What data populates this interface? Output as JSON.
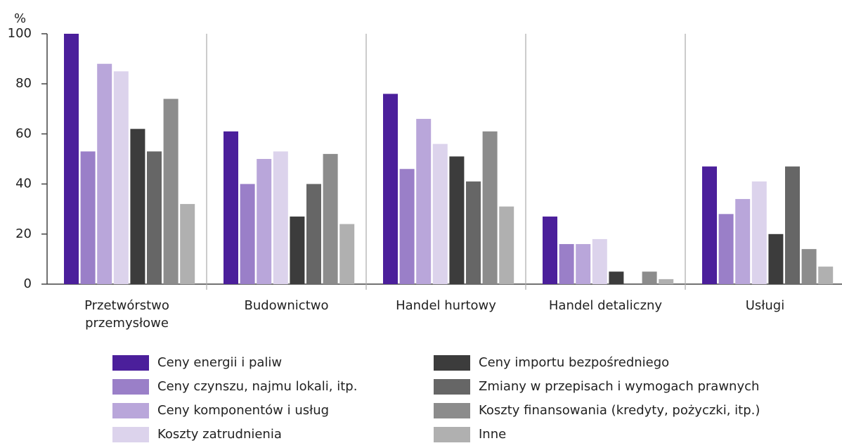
{
  "chart_data": {
    "type": "bar",
    "y_unit": "%",
    "categories": [
      "Przetwórstwo przemysłowe",
      "Budownictwo",
      "Handel hurtowy",
      "Handel detaliczny",
      "Usługi"
    ],
    "series": [
      {
        "name": "Ceny energii i paliw",
        "color": "#4b1f9b",
        "values": [
          100,
          61,
          76,
          27,
          47
        ]
      },
      {
        "name": "Ceny czynszu, najmu lokali, itp.",
        "color": "#9a7fc8",
        "values": [
          53,
          40,
          46,
          16,
          28
        ]
      },
      {
        "name": "Ceny komponentów i usług",
        "color": "#b9a6da",
        "values": [
          88,
          50,
          66,
          16,
          34
        ]
      },
      {
        "name": "Koszty zatrudnienia",
        "color": "#dcd3ec",
        "values": [
          85,
          53,
          56,
          18,
          41
        ]
      },
      {
        "name": "Ceny importu bezpośredniego",
        "color": "#3c3c3c",
        "values": [
          62,
          27,
          51,
          5,
          20
        ]
      },
      {
        "name": "Zmiany w przepisach i wymogach prawnych",
        "color": "#666666",
        "values": [
          53,
          40,
          41,
          0,
          47
        ]
      },
      {
        "name": "Koszty finansowania (kredyty, pożyczki, itp.)",
        "color": "#8c8c8c",
        "values": [
          74,
          52,
          61,
          5,
          14
        ]
      },
      {
        "name": "Inne",
        "color": "#b0b0b0",
        "values": [
          32,
          24,
          31,
          2,
          7
        ]
      }
    ],
    "ylim": [
      0,
      100
    ],
    "yticks": [
      0,
      20,
      40,
      60,
      80,
      100
    ],
    "grid": false,
    "legend": "bottom"
  }
}
